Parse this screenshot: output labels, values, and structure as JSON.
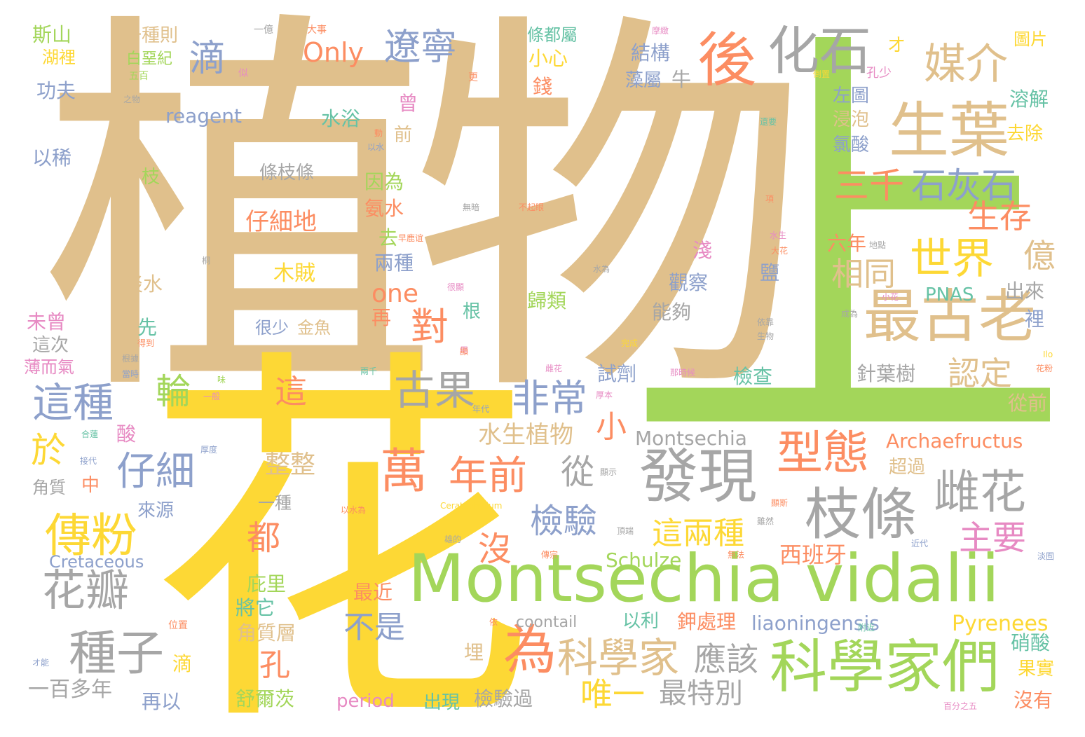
{
  "palette": {
    "tan": "#e0c08c",
    "green": "#a3d65a",
    "yellow": "#fdd835",
    "gray": "#a6a6a6",
    "orange": "#fc8d62",
    "blue": "#8da0cb",
    "pink": "#e78ac3",
    "teal": "#66c2a5"
  },
  "words": [
    {
      "text": "植物",
      "color": "tan"
    },
    {
      "text": "上",
      "color": "green"
    },
    {
      "text": "花",
      "color": "yellow"
    },
    {
      "text": "Montsechia vidalii",
      "color": "green"
    },
    {
      "text": "科學家們",
      "color": "green"
    },
    {
      "text": "發現",
      "color": "gray"
    },
    {
      "text": "枝條",
      "color": "gray"
    },
    {
      "text": "萬",
      "color": "orange"
    },
    {
      "text": "年前",
      "color": "orange"
    },
    {
      "text": "為",
      "color": "orange"
    },
    {
      "text": "科學家",
      "color": "tan"
    },
    {
      "text": "生葉",
      "color": "tan"
    },
    {
      "text": "最古老",
      "color": "tan"
    },
    {
      "text": "媒介",
      "color": "tan"
    },
    {
      "text": "化石",
      "color": "gray"
    },
    {
      "text": "後",
      "color": "orange"
    },
    {
      "text": "世界",
      "color": "yellow"
    },
    {
      "text": "石灰石",
      "color": "blue"
    },
    {
      "text": "三千",
      "color": "orange"
    },
    {
      "text": "型態",
      "color": "orange"
    },
    {
      "text": "雌花",
      "color": "gray"
    },
    {
      "text": "傳粉",
      "color": "yellow"
    },
    {
      "text": "種子",
      "color": "gray"
    },
    {
      "text": "花瓣",
      "color": "gray"
    },
    {
      "text": "這種",
      "color": "blue"
    },
    {
      "text": "仔細",
      "color": "blue"
    },
    {
      "text": "古果",
      "color": "gray"
    },
    {
      "text": "非常",
      "color": "blue"
    },
    {
      "text": "遼寧",
      "color": "blue"
    },
    {
      "text": "Only",
      "color": "orange"
    },
    {
      "text": "滴",
      "color": "blue"
    },
    {
      "text": "對",
      "color": "orange"
    },
    {
      "text": "one",
      "color": "orange"
    },
    {
      "text": "相同",
      "color": "tan"
    },
    {
      "text": "生存",
      "color": "orange"
    },
    {
      "text": "億",
      "color": "tan"
    },
    {
      "text": "認定",
      "color": "tan"
    },
    {
      "text": "主要",
      "color": "pink"
    },
    {
      "text": "這兩種",
      "color": "yellow"
    },
    {
      "text": "檢驗",
      "color": "blue"
    },
    {
      "text": "沒",
      "color": "orange"
    },
    {
      "text": "從",
      "color": "gray"
    },
    {
      "text": "應該",
      "color": "gray"
    },
    {
      "text": "唯一",
      "color": "yellow"
    },
    {
      "text": "最特別",
      "color": "gray"
    },
    {
      "text": "不是",
      "color": "blue"
    },
    {
      "text": "都",
      "color": "orange"
    },
    {
      "text": "孔",
      "color": "orange"
    },
    {
      "text": "輪",
      "color": "green"
    },
    {
      "text": "於",
      "color": "yellow"
    },
    {
      "text": "這",
      "color": "orange"
    },
    {
      "text": "小",
      "color": "orange"
    },
    {
      "text": "整整",
      "color": "tan"
    },
    {
      "text": "Montsechia",
      "color": "gray"
    },
    {
      "text": "水生植物",
      "color": "tan"
    },
    {
      "text": "Archaefructus",
      "color": "orange"
    },
    {
      "text": "Schulze",
      "color": "green"
    },
    {
      "text": "西班牙",
      "color": "orange"
    },
    {
      "text": "Pyrenees",
      "color": "yellow"
    },
    {
      "text": "liaoningensis",
      "color": "blue"
    },
    {
      "text": "Cretaceous",
      "color": "blue"
    },
    {
      "text": "coontail",
      "color": "gray"
    },
    {
      "text": "period",
      "color": "pink"
    },
    {
      "text": "reagent",
      "color": "blue"
    },
    {
      "text": "PNAS",
      "color": "teal"
    },
    {
      "text": "Ceratophyllum",
      "color": "yellow"
    },
    {
      "text": "條枝條",
      "color": "gray"
    },
    {
      "text": "仔細地",
      "color": "orange"
    },
    {
      "text": "木賊",
      "color": "yellow"
    },
    {
      "text": "結構",
      "color": "blue"
    },
    {
      "text": "藻屬",
      "color": "blue"
    },
    {
      "text": "牛",
      "color": "gray"
    },
    {
      "text": "小心",
      "color": "yellow"
    },
    {
      "text": "錢",
      "color": "orange"
    },
    {
      "text": "水浴",
      "color": "teal"
    },
    {
      "text": "因為",
      "color": "green"
    },
    {
      "text": "氨水",
      "color": "orange"
    },
    {
      "text": "去",
      "color": "green"
    },
    {
      "text": "兩種",
      "color": "blue"
    },
    {
      "text": "歸類",
      "color": "green"
    },
    {
      "text": "觀察",
      "color": "blue"
    },
    {
      "text": "能夠",
      "color": "gray"
    },
    {
      "text": "試劑",
      "color": "blue"
    },
    {
      "text": "檢查",
      "color": "teal"
    },
    {
      "text": "針葉樹",
      "color": "gray"
    },
    {
      "text": "出來",
      "color": "gray"
    },
    {
      "text": "溶解",
      "color": "teal"
    },
    {
      "text": "去除",
      "color": "yellow"
    },
    {
      "text": "左圖",
      "color": "blue"
    },
    {
      "text": "浸泡",
      "color": "tan"
    },
    {
      "text": "氯酸",
      "color": "blue"
    },
    {
      "text": "六年",
      "color": "orange"
    },
    {
      "text": "鹽",
      "color": "blue"
    },
    {
      "text": "淺",
      "color": "pink"
    },
    {
      "text": "裡",
      "color": "blue"
    },
    {
      "text": "從前",
      "color": "tan"
    },
    {
      "text": "超過",
      "color": "tan"
    },
    {
      "text": "鉀處理",
      "color": "orange"
    },
    {
      "text": "硝酸",
      "color": "teal"
    },
    {
      "text": "果實",
      "color": "yellow"
    },
    {
      "text": "沒有",
      "color": "orange"
    },
    {
      "text": "以利",
      "color": "teal"
    },
    {
      "text": "角質層",
      "color": "tan"
    },
    {
      "text": "將它",
      "color": "teal"
    },
    {
      "text": "庇里",
      "color": "green"
    },
    {
      "text": "最近",
      "color": "orange"
    },
    {
      "text": "舒爾茨",
      "color": "green"
    },
    {
      "text": "出現",
      "color": "teal"
    },
    {
      "text": "檢驗過",
      "color": "gray"
    },
    {
      "text": "再以",
      "color": "blue"
    },
    {
      "text": "一百多年",
      "color": "gray"
    },
    {
      "text": "滴",
      "color": "yellow"
    },
    {
      "text": "埋",
      "color": "tan"
    },
    {
      "text": "斯山",
      "color": "green"
    },
    {
      "text": "湖裡",
      "color": "yellow"
    },
    {
      "text": "一種則",
      "color": "tan"
    },
    {
      "text": "白堊紀",
      "color": "green"
    },
    {
      "text": "功夫",
      "color": "blue"
    },
    {
      "text": "以稀",
      "color": "blue"
    },
    {
      "text": "枝",
      "color": "green"
    },
    {
      "text": "淡水",
      "color": "tan"
    },
    {
      "text": "先",
      "color": "teal"
    },
    {
      "text": "未曾",
      "color": "pink"
    },
    {
      "text": "這次",
      "color": "gray"
    },
    {
      "text": "薄而氣",
      "color": "pink"
    },
    {
      "text": "很少",
      "color": "blue"
    },
    {
      "text": "金魚",
      "color": "tan"
    },
    {
      "text": "再",
      "color": "orange"
    },
    {
      "text": "根",
      "color": "teal"
    },
    {
      "text": "中",
      "color": "orange"
    },
    {
      "text": "角質",
      "color": "gray"
    },
    {
      "text": "來源",
      "color": "blue"
    },
    {
      "text": "一種",
      "color": "gray"
    },
    {
      "text": "酸",
      "color": "pink"
    },
    {
      "text": "前",
      "color": "tan"
    },
    {
      "text": "曾",
      "color": "pink"
    },
    {
      "text": "圖片",
      "color": "yellow"
    },
    {
      "text": "オ",
      "color": "yellow"
    },
    {
      "text": "孔少",
      "color": "pink"
    },
    {
      "text": "條都屬",
      "color": "teal"
    },
    {
      "text": "一億",
      "color": "gray"
    },
    {
      "text": "大事",
      "color": "orange"
    },
    {
      "text": "五百",
      "color": "green"
    },
    {
      "text": "似",
      "color": "pink"
    },
    {
      "text": "之物",
      "color": "gray"
    },
    {
      "text": "更",
      "color": "orange"
    },
    {
      "text": "摩緻",
      "color": "pink"
    },
    {
      "text": "倒置",
      "color": "yellow"
    },
    {
      "text": "還要",
      "color": "teal"
    },
    {
      "text": "項",
      "color": "orange"
    },
    {
      "text": "以水",
      "color": "blue"
    },
    {
      "text": "動",
      "color": "orange"
    },
    {
      "text": "無暗",
      "color": "gray"
    },
    {
      "text": "不起眼",
      "color": "orange"
    },
    {
      "text": "地點",
      "color": "gray"
    },
    {
      "text": "水生",
      "color": "pink"
    },
    {
      "text": "大花",
      "color": "orange"
    },
    {
      "text": "小花",
      "color": "pink"
    },
    {
      "text": "水為",
      "color": "gray"
    },
    {
      "text": "很顯",
      "color": "pink"
    },
    {
      "text": "成為",
      "color": "gray"
    },
    {
      "text": "依靠",
      "color": "gray"
    },
    {
      "text": "生物",
      "color": "gray"
    },
    {
      "text": "完成",
      "color": "yellow"
    },
    {
      "text": "根據",
      "color": "gray"
    },
    {
      "text": "當時",
      "color": "blue"
    },
    {
      "text": "雌花",
      "color": "pink"
    },
    {
      "text": "兩千",
      "color": "teal"
    },
    {
      "text": "用",
      "color": "pink"
    },
    {
      "text": "厚本",
      "color": "pink"
    },
    {
      "text": "那時候",
      "color": "pink"
    },
    {
      "text": "年代",
      "color": "blue"
    },
    {
      "text": "一般",
      "color": "pink"
    },
    {
      "text": "味",
      "color": "green"
    },
    {
      "text": "合蓮",
      "color": "teal"
    },
    {
      "text": "接代",
      "color": "blue"
    },
    {
      "text": "厚度",
      "color": "blue"
    },
    {
      "text": "顯示",
      "color": "gray"
    },
    {
      "text": "以水為",
      "color": "orange"
    },
    {
      "text": "頂端",
      "color": "gray"
    },
    {
      "text": "雖然",
      "color": "gray"
    },
    {
      "text": "近代",
      "color": "blue"
    },
    {
      "text": "傳宗",
      "color": "orange"
    },
    {
      "text": "無法",
      "color": "orange"
    },
    {
      "text": "雄的",
      "color": "gray"
    },
    {
      "text": "附近",
      "color": "teal"
    },
    {
      "text": "位置",
      "color": "orange"
    },
    {
      "text": "オ能",
      "color": "blue"
    },
    {
      "text": "百分之五",
      "color": "pink"
    },
    {
      "text": "Ilo",
      "color": "yellow"
    },
    {
      "text": "花粉",
      "color": "orange"
    },
    {
      "text": "淡囿",
      "color": "blue"
    },
    {
      "text": "得到",
      "color": "orange"
    },
    {
      "text": "桐",
      "color": "gray"
    },
    {
      "text": "早鹿谊",
      "color": "orange"
    },
    {
      "text": "依",
      "color": "orange"
    },
    {
      "text": "顯斯",
      "color": "orange"
    },
    {
      "text": "顯",
      "color": "orange"
    }
  ]
}
